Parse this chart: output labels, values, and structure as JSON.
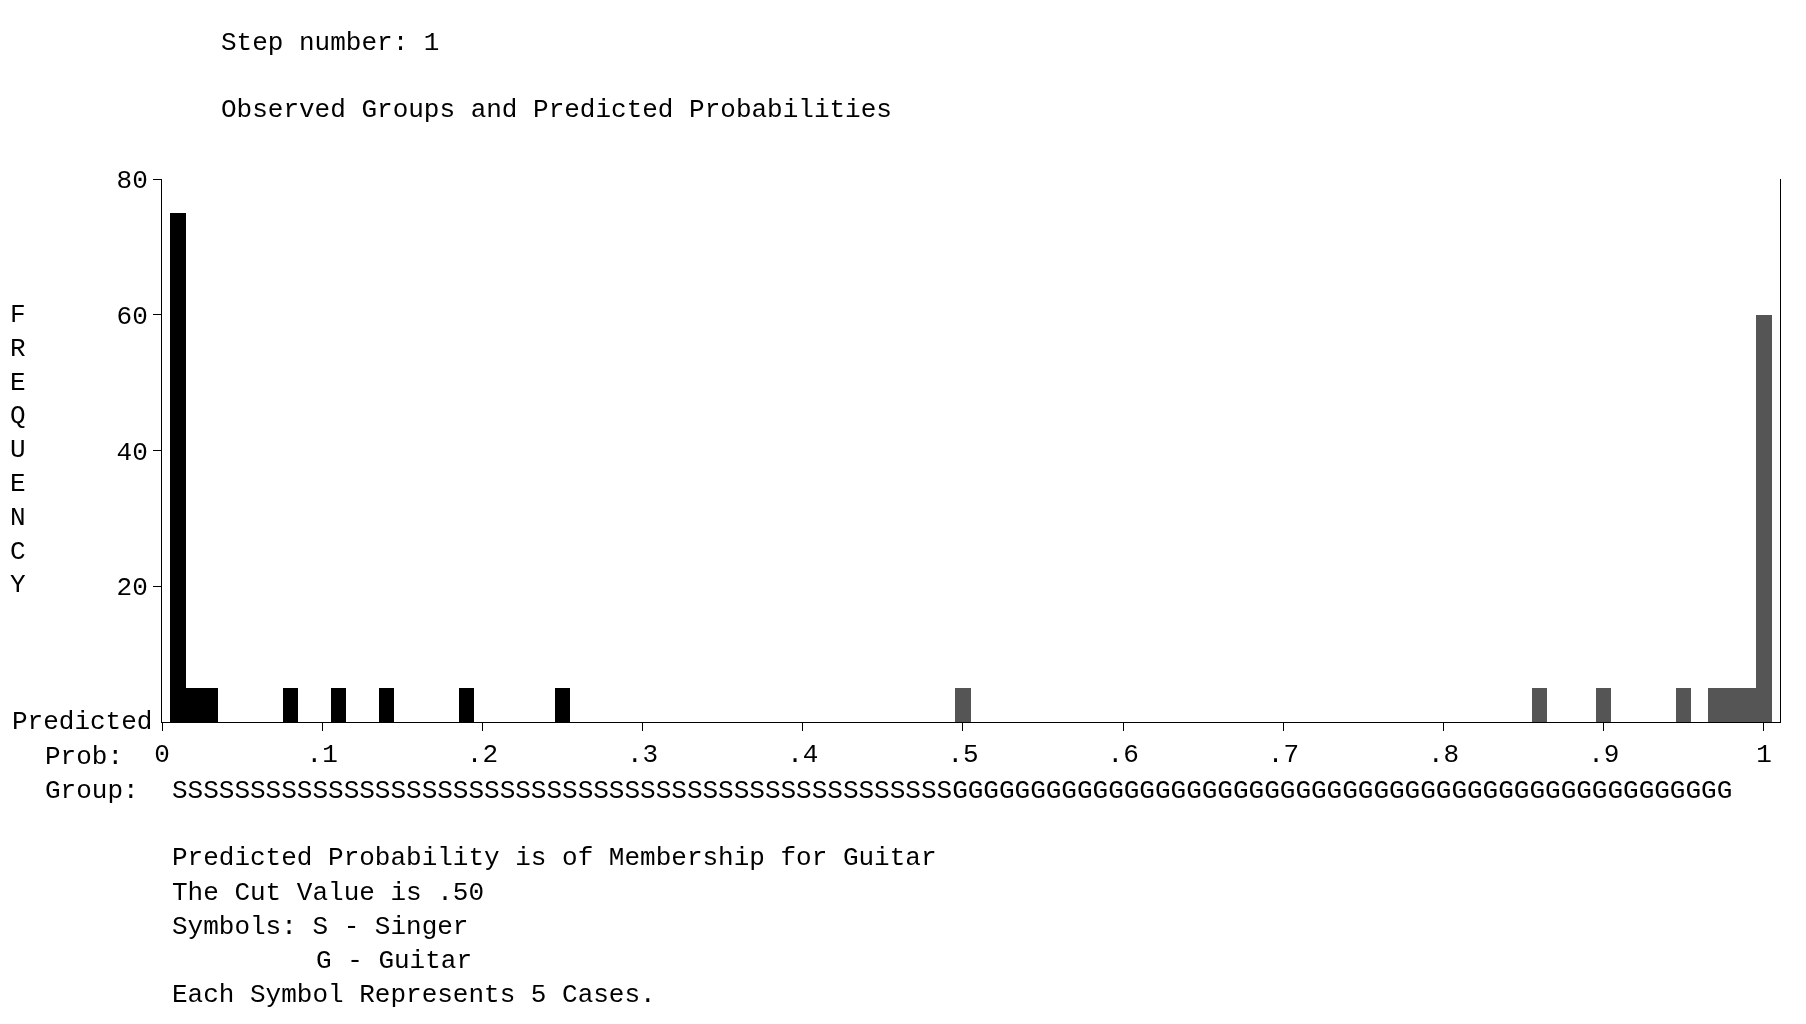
{
  "chart_data": {
    "type": "bar",
    "title": "Observed Groups and Predicted Probabilities",
    "subtitle": "Step number: 1",
    "ylabel": "FREQUENCY",
    "series": [
      {
        "color": "#000000",
        "x": [
          0.01,
          0.02,
          0.03,
          0.08,
          0.11,
          0.14,
          0.19,
          0.25
        ],
        "values": [
          75,
          5,
          5,
          5,
          5,
          5,
          5,
          5
        ]
      },
      {
        "color": "#555555",
        "x": [
          0.5,
          0.86,
          0.9,
          0.95,
          0.97,
          0.98,
          0.99,
          1.0
        ],
        "values": [
          5,
          5,
          5,
          5,
          5,
          5,
          5,
          60
        ]
      }
    ],
    "xlim": [
      0,
      1.01
    ],
    "xticks": [
      {
        "value": 0,
        "label": "0"
      },
      {
        "value": 0.1,
        "label": ".1"
      },
      {
        "value": 0.2,
        "label": ".2"
      },
      {
        "value": 0.3,
        "label": ".3"
      },
      {
        "value": 0.4,
        "label": ".4"
      },
      {
        "value": 0.5,
        "label": ".5"
      },
      {
        "value": 0.6,
        "label": ".6"
      },
      {
        "value": 0.7,
        "label": ".7"
      },
      {
        "value": 0.8,
        "label": ".8"
      },
      {
        "value": 0.9,
        "label": ".9"
      },
      {
        "value": 1,
        "label": "1"
      }
    ],
    "ylim": [
      0,
      80
    ],
    "yticks": [
      20,
      40,
      60,
      80
    ],
    "annotations": [
      "Predicted",
      "Prob:",
      "Group:",
      "SSSSSSSSSSSSSSSSSSSSSSSSSSSSSSSSSSSSSSSSSSSSSSSSSSGGGGGGGGGGGGGGGGGGGGGGGGGGGGGGGGGGGGGGGGGGGGGGGGGG",
      "Predicted Probability is of Membership for Guitar",
      "The Cut Value is .50",
      "Symbols: S - Singer",
      "G - Guitar",
      "Each Symbol Represents 5 Cases."
    ]
  }
}
